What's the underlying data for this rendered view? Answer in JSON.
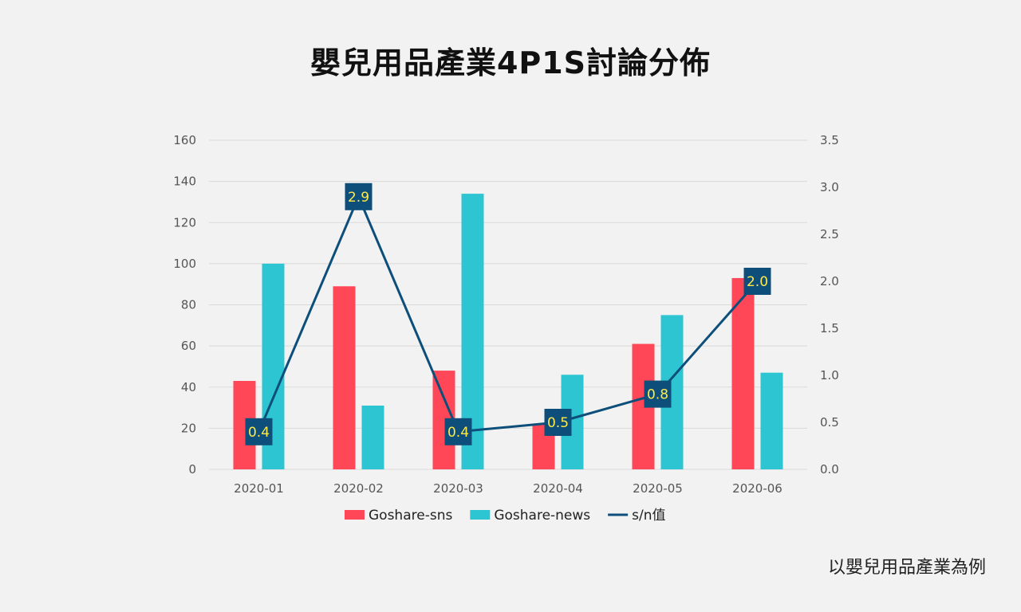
{
  "page": {
    "title": "嬰兒用品產業4P1S討論分佈",
    "note": "以嬰兒用品產業為例"
  },
  "chart_data": {
    "type": "bar",
    "title": "嬰兒用品產業4P1S討論分佈",
    "categories": [
      "2020-01",
      "2020-02",
      "2020-03",
      "2020-04",
      "2020-05",
      "2020-06"
    ],
    "series": [
      {
        "name": "Goshare-sns",
        "type": "bar",
        "axis": "left",
        "color": "#ff4757",
        "values": [
          43,
          89,
          48,
          22,
          61,
          93
        ]
      },
      {
        "name": "Goshare-news",
        "type": "bar",
        "axis": "left",
        "color": "#2ec5d3",
        "values": [
          100,
          31,
          134,
          46,
          75,
          47
        ]
      },
      {
        "name": "s/n值",
        "type": "line",
        "axis": "right",
        "color": "#0d4f7a",
        "values": [
          0.4,
          2.9,
          0.4,
          0.5,
          0.8,
          2.0
        ],
        "data_labels": [
          "0.4",
          "2.9",
          "0.4",
          "0.5",
          "0.8",
          "2.0"
        ]
      }
    ],
    "y_left": {
      "min": 0,
      "max": 160,
      "ticks": [
        "0",
        "20",
        "40",
        "60",
        "80",
        "100",
        "120",
        "140",
        "160"
      ]
    },
    "y_right": {
      "min": 0,
      "max": 3.5,
      "ticks": [
        "0.0",
        "0.5",
        "1.0",
        "1.5",
        "2.0",
        "2.5",
        "3.0",
        "3.5"
      ]
    },
    "grid": "horizontal",
    "legend_position": "bottom",
    "label_box_color": "#0d4f7a",
    "label_text_color": "#ffe94a"
  }
}
